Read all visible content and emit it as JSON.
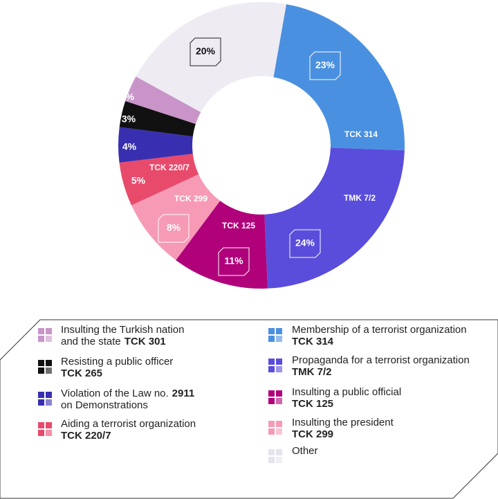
{
  "chart_data": {
    "type": "pie",
    "categories": [
      "TCK 314",
      "TMK 7/2",
      "TCK 125",
      "TCK 299",
      "TCK 220/7",
      null,
      null,
      null,
      null
    ],
    "values": [
      23,
      24,
      11,
      8,
      5,
      4,
      3,
      3,
      20
    ],
    "value_labels": [
      "23%",
      "24%",
      "11%",
      "8%",
      "5%",
      "4%",
      "3%",
      "3%",
      "20%"
    ],
    "colors": [
      "#4a90e0",
      "#5a4ddc",
      "#b0007a",
      "#f69ab6",
      "#e84a6c",
      "#382fb0",
      "#111111",
      "#c995c9",
      "#eeebf3"
    ],
    "legend": [
      {
        "color": "#c995c9",
        "lines": [
          [
            {
              "text": "Insulting the Turkish nation",
              "bold": false
            }
          ],
          [
            {
              "text": "and the state",
              "bold": false
            },
            {
              "text": "TCK 301",
              "bold": true
            }
          ]
        ]
      },
      {
        "color": "#111111",
        "lines": [
          [
            {
              "text": "Resisting a public officer",
              "bold": false
            }
          ],
          [
            {
              "text": "TCK 265",
              "bold": true
            }
          ]
        ]
      },
      {
        "color": "#382fb0",
        "lines": [
          [
            {
              "text": "Violation of the Law no.",
              "bold": false
            },
            {
              "text": "2911",
              "bold": true
            }
          ],
          [
            {
              "text": "on Demonstrations",
              "bold": false
            }
          ]
        ]
      },
      {
        "color": "#e84a6c",
        "lines": [
          [
            {
              "text": "Aiding a terrorist organization",
              "bold": false
            }
          ],
          [
            {
              "text": "TCK 220/7",
              "bold": true
            }
          ]
        ]
      },
      {
        "color": "#4a90e0",
        "lines": [
          [
            {
              "text": "Membership of a terrorist organization",
              "bold": false
            }
          ],
          [
            {
              "text": "TCK 314",
              "bold": true
            }
          ]
        ]
      },
      {
        "color": "#5a4ddc",
        "lines": [
          [
            {
              "text": "Propaganda for a terrorist organization",
              "bold": false
            }
          ],
          [
            {
              "text": "TMK 7/2",
              "bold": true
            }
          ]
        ]
      },
      {
        "color": "#b0007a",
        "lines": [
          [
            {
              "text": "Insulting a public official",
              "bold": false
            }
          ],
          [
            {
              "text": "TCK 125",
              "bold": true
            }
          ]
        ]
      },
      {
        "color": "#f69ab6",
        "lines": [
          [
            {
              "text": "Insulting the president",
              "bold": false
            }
          ],
          [
            {
              "text": "TCK 299",
              "bold": true
            }
          ]
        ]
      },
      {
        "color": "#e6e3ee",
        "lines": [
          [
            {
              "text": "Other",
              "bold": false
            }
          ]
        ]
      }
    ]
  }
}
